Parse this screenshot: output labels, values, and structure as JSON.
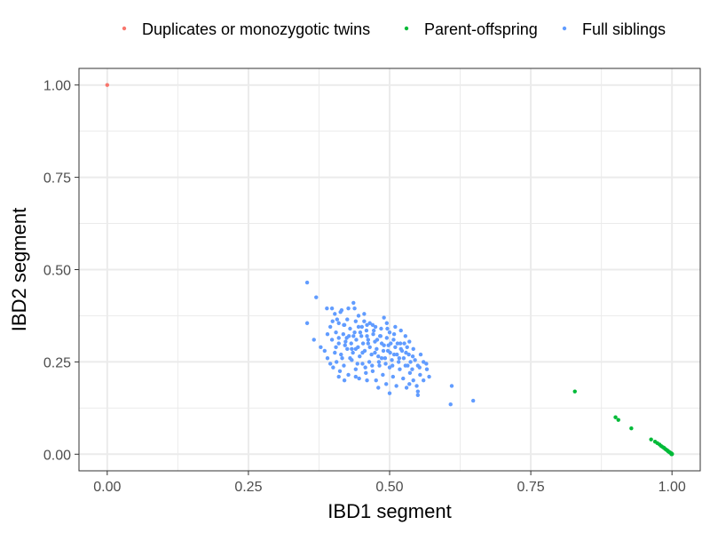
{
  "chart_data": {
    "type": "scatter",
    "title": "",
    "xlabel": "IBD1 segment",
    "ylabel": "IBD2 segment",
    "xlim": [
      -0.05,
      1.05
    ],
    "ylim": [
      -0.045,
      1.045
    ],
    "xticks": [
      0.0,
      0.25,
      0.5,
      0.75,
      1.0
    ],
    "xtick_labels": [
      "0.00",
      "0.25",
      "0.50",
      "0.75",
      "1.00"
    ],
    "yticks": [
      0.0,
      0.25,
      0.5,
      0.75,
      1.0
    ],
    "ytick_labels": [
      "0.00",
      "0.25",
      "0.50",
      "0.75",
      "1.00"
    ],
    "grid": true,
    "legend_position": "top",
    "series": [
      {
        "name": "Duplicates or monozygotic twins",
        "color": "#F8766D",
        "points": [
          [
            0.0,
            1.0
          ]
        ]
      },
      {
        "name": "Parent-offspring",
        "color": "#00BA38",
        "points": [
          [
            0.828,
            0.17
          ],
          [
            0.9,
            0.1
          ],
          [
            0.905,
            0.093
          ],
          [
            0.928,
            0.07
          ],
          [
            0.963,
            0.04
          ],
          [
            0.97,
            0.034
          ],
          [
            0.974,
            0.03
          ],
          [
            0.978,
            0.026
          ],
          [
            0.981,
            0.022
          ],
          [
            0.984,
            0.019
          ],
          [
            0.986,
            0.017
          ],
          [
            0.988,
            0.014
          ],
          [
            0.99,
            0.012
          ],
          [
            0.992,
            0.01
          ],
          [
            0.993,
            0.008
          ],
          [
            0.994,
            0.007
          ],
          [
            0.995,
            0.006
          ],
          [
            0.996,
            0.005
          ],
          [
            0.997,
            0.004
          ],
          [
            0.998,
            0.003
          ],
          [
            0.999,
            0.002
          ],
          [
            1.0,
            0.001
          ],
          [
            0.999,
            0.0
          ],
          [
            1.0,
            0.0
          ]
        ]
      },
      {
        "name": "Full siblings",
        "color": "#619CFF",
        "points": [
          [
            0.354,
            0.465
          ],
          [
            0.37,
            0.425
          ],
          [
            0.354,
            0.355
          ],
          [
            0.366,
            0.31
          ],
          [
            0.378,
            0.29
          ],
          [
            0.389,
            0.395
          ],
          [
            0.398,
            0.395
          ],
          [
            0.399,
            0.36
          ],
          [
            0.403,
            0.38
          ],
          [
            0.405,
            0.33
          ],
          [
            0.41,
            0.355
          ],
          [
            0.413,
            0.385
          ],
          [
            0.415,
            0.39
          ],
          [
            0.419,
            0.35
          ],
          [
            0.425,
            0.365
          ],
          [
            0.427,
            0.395
          ],
          [
            0.436,
            0.41
          ],
          [
            0.438,
            0.395
          ],
          [
            0.44,
            0.36
          ],
          [
            0.445,
            0.375
          ],
          [
            0.451,
            0.345
          ],
          [
            0.455,
            0.38
          ],
          [
            0.46,
            0.35
          ],
          [
            0.465,
            0.355
          ],
          [
            0.475,
            0.345
          ],
          [
            0.49,
            0.37
          ],
          [
            0.495,
            0.355
          ],
          [
            0.398,
            0.31
          ],
          [
            0.405,
            0.29
          ],
          [
            0.41,
            0.3
          ],
          [
            0.414,
            0.27
          ],
          [
            0.418,
            0.325
          ],
          [
            0.422,
            0.305
          ],
          [
            0.425,
            0.285
          ],
          [
            0.428,
            0.32
          ],
          [
            0.432,
            0.3
          ],
          [
            0.435,
            0.275
          ],
          [
            0.438,
            0.33
          ],
          [
            0.441,
            0.31
          ],
          [
            0.444,
            0.29
          ],
          [
            0.447,
            0.265
          ],
          [
            0.45,
            0.32
          ],
          [
            0.453,
            0.3
          ],
          [
            0.456,
            0.28
          ],
          [
            0.459,
            0.335
          ],
          [
            0.462,
            0.31
          ],
          [
            0.465,
            0.29
          ],
          [
            0.468,
            0.27
          ],
          [
            0.471,
            0.325
          ],
          [
            0.474,
            0.305
          ],
          [
            0.477,
            0.285
          ],
          [
            0.48,
            0.265
          ],
          [
            0.483,
            0.32
          ],
          [
            0.486,
            0.3
          ],
          [
            0.489,
            0.28
          ],
          [
            0.492,
            0.26
          ],
          [
            0.495,
            0.315
          ],
          [
            0.498,
            0.295
          ],
          [
            0.501,
            0.275
          ],
          [
            0.504,
            0.255
          ],
          [
            0.507,
            0.31
          ],
          [
            0.51,
            0.29
          ],
          [
            0.513,
            0.27
          ],
          [
            0.516,
            0.25
          ],
          [
            0.519,
            0.3
          ],
          [
            0.522,
            0.28
          ],
          [
            0.525,
            0.26
          ],
          [
            0.528,
            0.24
          ],
          [
            0.531,
            0.29
          ],
          [
            0.534,
            0.27
          ],
          [
            0.537,
            0.25
          ],
          [
            0.54,
            0.23
          ],
          [
            0.385,
            0.28
          ],
          [
            0.39,
            0.26
          ],
          [
            0.395,
            0.245
          ],
          [
            0.4,
            0.235
          ],
          [
            0.406,
            0.25
          ],
          [
            0.412,
            0.225
          ],
          [
            0.419,
            0.24
          ],
          [
            0.427,
            0.215
          ],
          [
            0.433,
            0.255
          ],
          [
            0.44,
            0.23
          ],
          [
            0.446,
            0.205
          ],
          [
            0.452,
            0.245
          ],
          [
            0.458,
            0.22
          ],
          [
            0.464,
            0.25
          ],
          [
            0.47,
            0.225
          ],
          [
            0.476,
            0.2
          ],
          [
            0.482,
            0.24
          ],
          [
            0.488,
            0.215
          ],
          [
            0.494,
            0.19
          ],
          [
            0.5,
            0.235
          ],
          [
            0.506,
            0.21
          ],
          [
            0.512,
            0.185
          ],
          [
            0.518,
            0.23
          ],
          [
            0.524,
            0.205
          ],
          [
            0.53,
            0.18
          ],
          [
            0.536,
            0.22
          ],
          [
            0.542,
            0.2
          ],
          [
            0.548,
            0.185
          ],
          [
            0.554,
            0.215
          ],
          [
            0.56,
            0.2
          ],
          [
            0.566,
            0.23
          ],
          [
            0.57,
            0.21
          ],
          [
            0.545,
            0.255
          ],
          [
            0.55,
            0.24
          ],
          [
            0.555,
            0.27
          ],
          [
            0.56,
            0.25
          ],
          [
            0.542,
            0.285
          ],
          [
            0.535,
            0.305
          ],
          [
            0.528,
            0.32
          ],
          [
            0.52,
            0.335
          ],
          [
            0.51,
            0.345
          ],
          [
            0.5,
            0.33
          ],
          [
            0.485,
            0.34
          ],
          [
            0.47,
            0.35
          ],
          [
            0.455,
            0.36
          ],
          [
            0.445,
            0.345
          ],
          [
            0.43,
            0.34
          ],
          [
            0.42,
            0.35
          ],
          [
            0.407,
            0.365
          ],
          [
            0.395,
            0.345
          ],
          [
            0.39,
            0.325
          ],
          [
            0.403,
            0.275
          ],
          [
            0.416,
            0.26
          ],
          [
            0.43,
            0.26
          ],
          [
            0.443,
            0.245
          ],
          [
            0.457,
            0.235
          ],
          [
            0.469,
            0.24
          ],
          [
            0.481,
            0.25
          ],
          [
            0.493,
            0.245
          ],
          [
            0.505,
            0.24
          ],
          [
            0.517,
            0.26
          ],
          [
            0.529,
            0.275
          ],
          [
            0.541,
            0.265
          ],
          [
            0.553,
            0.235
          ],
          [
            0.565,
            0.245
          ],
          [
            0.44,
            0.285
          ],
          [
            0.452,
            0.275
          ],
          [
            0.462,
            0.3
          ],
          [
            0.474,
            0.275
          ],
          [
            0.486,
            0.26
          ],
          [
            0.497,
            0.28
          ],
          [
            0.508,
            0.27
          ],
          [
            0.52,
            0.285
          ],
          [
            0.532,
            0.24
          ],
          [
            0.478,
            0.31
          ],
          [
            0.49,
            0.295
          ],
          [
            0.502,
            0.3
          ],
          [
            0.514,
            0.3
          ],
          [
            0.526,
            0.3
          ],
          [
            0.46,
            0.32
          ],
          [
            0.472,
            0.335
          ],
          [
            0.484,
            0.32
          ],
          [
            0.496,
            0.34
          ],
          [
            0.508,
            0.325
          ],
          [
            0.448,
            0.33
          ],
          [
            0.436,
            0.32
          ],
          [
            0.424,
            0.315
          ],
          [
            0.433,
            0.285
          ],
          [
            0.421,
            0.295
          ],
          [
            0.41,
            0.315
          ],
          [
            0.535,
            0.19
          ],
          [
            0.55,
            0.17
          ],
          [
            0.5,
            0.165
          ],
          [
            0.48,
            0.18
          ],
          [
            0.46,
            0.2
          ],
          [
            0.44,
            0.21
          ],
          [
            0.42,
            0.2
          ],
          [
            0.41,
            0.21
          ],
          [
            0.55,
            0.16
          ],
          [
            0.61,
            0.185
          ],
          [
            0.608,
            0.135
          ],
          [
            0.648,
            0.145
          ]
        ]
      }
    ]
  }
}
